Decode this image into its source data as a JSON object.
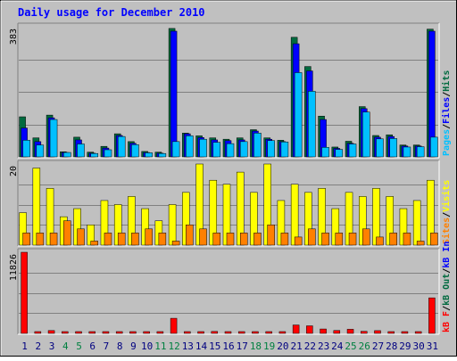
{
  "title": "Daily usage for December 2010",
  "colors": {
    "background": "#c0c0c0",
    "title": "#0000ff",
    "grid": "#808080",
    "pages": "#00c0ff",
    "files": "#0000ff",
    "hits": "#006a3f",
    "visits": "#ffff00",
    "sites": "#ff8000",
    "kbin": "#0000ff",
    "kbout": "#006a3f",
    "kbf": "#ff0000",
    "weekend_label": "#008040",
    "weekday_label": "#000080"
  },
  "chart_data": [
    {
      "type": "bar",
      "ylim": [
        0,
        383
      ],
      "y_max_label": "383",
      "legend": {
        "pages": "Pages",
        "files": "Files",
        "hits": "Hits",
        "sep": "/"
      },
      "categories": [
        "1",
        "2",
        "3",
        "4",
        "5",
        "6",
        "7",
        "8",
        "9",
        "10",
        "11",
        "12",
        "13",
        "14",
        "15",
        "16",
        "17",
        "18",
        "19",
        "20",
        "21",
        "22",
        "23",
        "24",
        "25",
        "26",
        "27",
        "28",
        "29",
        "30",
        "31"
      ],
      "series": [
        {
          "name": "Hits",
          "values": [
            118,
            56,
            123,
            15,
            58,
            14,
            31,
            68,
            45,
            16,
            14,
            378,
            70,
            62,
            56,
            52,
            56,
            80,
            56,
            49,
            352,
            266,
            120,
            29,
            46,
            148,
            63,
            65,
            35,
            35,
            376
          ]
        },
        {
          "name": "Files",
          "values": [
            85,
            45,
            115,
            13,
            50,
            11,
            26,
            63,
            40,
            13,
            11,
            370,
            68,
            57,
            50,
            48,
            50,
            76,
            52,
            45,
            333,
            253,
            110,
            25,
            40,
            142,
            58,
            60,
            32,
            32,
            370
          ]
        },
        {
          "name": "Pages",
          "values": [
            49,
            35,
            110,
            13,
            38,
            10,
            21,
            60,
            36,
            12,
            10,
            45,
            62,
            52,
            43,
            39,
            45,
            70,
            48,
            44,
            248,
            193,
            28,
            22,
            38,
            132,
            53,
            54,
            29,
            30,
            58
          ]
        }
      ]
    },
    {
      "type": "bar",
      "ylim": [
        0,
        20
      ],
      "y_max_label": "20",
      "legend": {
        "visits": "Visits",
        "sites": "Sites",
        "sep": "/"
      },
      "categories": [
        "1",
        "2",
        "3",
        "4",
        "5",
        "6",
        "7",
        "8",
        "9",
        "10",
        "11",
        "12",
        "13",
        "14",
        "15",
        "16",
        "17",
        "18",
        "19",
        "20",
        "21",
        "22",
        "23",
        "24",
        "25",
        "26",
        "27",
        "28",
        "29",
        "30",
        "31"
      ],
      "series": [
        {
          "name": "Visits",
          "values": [
            8,
            19,
            14,
            7,
            9,
            5,
            11,
            10,
            12,
            9,
            6,
            10,
            13,
            20,
            16,
            15,
            18,
            13,
            20,
            11,
            15,
            13,
            14,
            9,
            13,
            12,
            14,
            12,
            9,
            11,
            16
          ]
        },
        {
          "name": "Sites",
          "values": [
            3,
            3,
            3,
            6,
            4,
            1,
            3,
            3,
            3,
            4,
            3,
            1,
            5,
            4,
            3,
            3,
            3,
            3,
            5,
            3,
            2,
            4,
            3,
            3,
            3,
            4,
            2,
            3,
            3,
            1,
            3
          ]
        }
      ]
    },
    {
      "type": "bar",
      "ylim": [
        0,
        11826
      ],
      "y_max_label": "11826",
      "legend": {
        "kbf": "kB F",
        "kbout": "kB Out",
        "kbin": "kB In",
        "sep": "/"
      },
      "categories": [
        "1",
        "2",
        "3",
        "4",
        "5",
        "6",
        "7",
        "8",
        "9",
        "10",
        "11",
        "12",
        "13",
        "14",
        "15",
        "16",
        "17",
        "18",
        "19",
        "20",
        "21",
        "22",
        "23",
        "24",
        "25",
        "26",
        "27",
        "28",
        "29",
        "30",
        "31"
      ],
      "weekend_days": [
        "4",
        "5",
        "11",
        "12",
        "18",
        "19",
        "25",
        "26"
      ],
      "series": [
        {
          "name": "kB F",
          "values": [
            11826,
            120,
            410,
            80,
            170,
            50,
            90,
            160,
            90,
            50,
            60,
            2200,
            120,
            160,
            280,
            140,
            150,
            250,
            180,
            140,
            1220,
            1100,
            640,
            420,
            600,
            300,
            400,
            230,
            110,
            180,
            5180
          ]
        }
      ]
    }
  ]
}
